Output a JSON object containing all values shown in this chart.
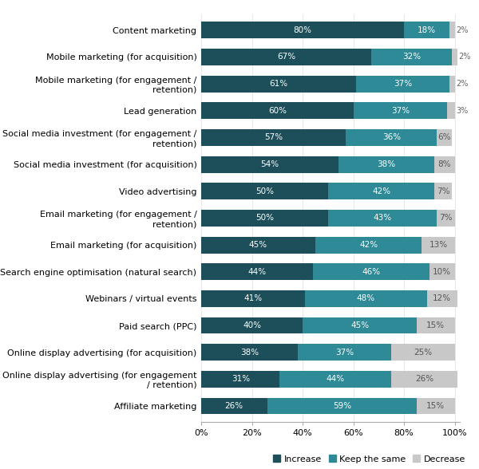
{
  "categories": [
    "Content marketing",
    "Mobile marketing (for acquisition)",
    "Mobile marketing (for engagement /\nretention)",
    "Lead generation",
    "Social media investment (for engagement /\nretention)",
    "Social media investment (for acquisition)",
    "Video advertising",
    "Email marketing (for engagement /\nretention)",
    "Email marketing (for acquisition)",
    "Search engine optimisation (natural search)",
    "Webinars / virtual events",
    "Paid search (PPC)",
    "Online display advertising (for acquisition)",
    "Online display advertising (for engagement\n/ retention)",
    "Affiliate marketing"
  ],
  "increase": [
    80,
    67,
    61,
    60,
    57,
    54,
    50,
    50,
    45,
    44,
    41,
    40,
    38,
    31,
    26
  ],
  "keep_same": [
    18,
    32,
    37,
    37,
    36,
    38,
    42,
    43,
    42,
    46,
    48,
    45,
    37,
    44,
    59
  ],
  "decrease": [
    2,
    2,
    2,
    3,
    6,
    8,
    7,
    7,
    13,
    10,
    12,
    15,
    25,
    26,
    15
  ],
  "color_increase": "#1c4f5a",
  "color_keep": "#2d8a96",
  "color_decrease": "#c8c8c8",
  "legend_labels": [
    "Increase",
    "Keep the same",
    "Decrease"
  ],
  "background_color": "#ffffff",
  "bar_height": 0.62,
  "label_fontsize": 7.5,
  "tick_fontsize": 8,
  "legend_fontsize": 8,
  "category_fontsize": 8
}
